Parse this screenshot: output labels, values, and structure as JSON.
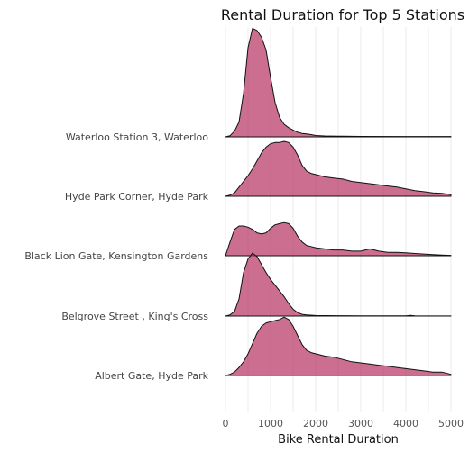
{
  "chart_data": {
    "type": "ridgeline",
    "title": "Rental Duration for Top 5 Stations",
    "xlabel": "Bike Rental Duration",
    "ylabel": "",
    "xlim": [
      -40,
      5100
    ],
    "xticks": [
      0,
      1000,
      2000,
      3000,
      4000,
      5000
    ],
    "grid": true,
    "fill_color": "#b5305f",
    "fill_opacity": 0.7,
    "series": [
      {
        "name": "Waterloo Station 3, Waterloo",
        "points": [
          [
            0,
            0
          ],
          [
            100,
            0.01
          ],
          [
            200,
            0.05
          ],
          [
            300,
            0.13
          ],
          [
            400,
            0.38
          ],
          [
            500,
            0.78
          ],
          [
            600,
            0.95
          ],
          [
            700,
            0.93
          ],
          [
            800,
            0.87
          ],
          [
            900,
            0.76
          ],
          [
            1000,
            0.52
          ],
          [
            1100,
            0.3
          ],
          [
            1200,
            0.17
          ],
          [
            1300,
            0.11
          ],
          [
            1400,
            0.08
          ],
          [
            1500,
            0.06
          ],
          [
            1600,
            0.04
          ],
          [
            1700,
            0.03
          ],
          [
            1800,
            0.025
          ],
          [
            1900,
            0.02
          ],
          [
            2000,
            0.012
          ],
          [
            2200,
            0.008
          ],
          [
            2500,
            0.006
          ],
          [
            3000,
            0.004
          ],
          [
            4000,
            0.003
          ],
          [
            5000,
            0.003
          ]
        ]
      },
      {
        "name": "Hyde Park Corner, Hyde Park",
        "points": [
          [
            0,
            0
          ],
          [
            100,
            0.01
          ],
          [
            200,
            0.03
          ],
          [
            300,
            0.08
          ],
          [
            400,
            0.13
          ],
          [
            500,
            0.18
          ],
          [
            600,
            0.24
          ],
          [
            700,
            0.31
          ],
          [
            800,
            0.38
          ],
          [
            900,
            0.43
          ],
          [
            1000,
            0.46
          ],
          [
            1100,
            0.47
          ],
          [
            1200,
            0.47
          ],
          [
            1300,
            0.48
          ],
          [
            1400,
            0.47
          ],
          [
            1500,
            0.43
          ],
          [
            1600,
            0.36
          ],
          [
            1700,
            0.27
          ],
          [
            1800,
            0.22
          ],
          [
            1900,
            0.2
          ],
          [
            2000,
            0.19
          ],
          [
            2200,
            0.17
          ],
          [
            2400,
            0.16
          ],
          [
            2600,
            0.15
          ],
          [
            2800,
            0.13
          ],
          [
            3000,
            0.12
          ],
          [
            3200,
            0.11
          ],
          [
            3400,
            0.1
          ],
          [
            3600,
            0.09
          ],
          [
            3800,
            0.08
          ],
          [
            4000,
            0.065
          ],
          [
            4200,
            0.05
          ],
          [
            4400,
            0.04
          ],
          [
            4600,
            0.03
          ],
          [
            4800,
            0.025
          ],
          [
            5000,
            0.015
          ]
        ]
      },
      {
        "name": "Black Lion Gate, Kensington Gardens",
        "points": [
          [
            0,
            0
          ],
          [
            100,
            0.12
          ],
          [
            200,
            0.23
          ],
          [
            300,
            0.26
          ],
          [
            400,
            0.26
          ],
          [
            500,
            0.25
          ],
          [
            600,
            0.23
          ],
          [
            700,
            0.2
          ],
          [
            800,
            0.19
          ],
          [
            900,
            0.2
          ],
          [
            1000,
            0.24
          ],
          [
            1100,
            0.27
          ],
          [
            1200,
            0.28
          ],
          [
            1300,
            0.29
          ],
          [
            1400,
            0.28
          ],
          [
            1500,
            0.24
          ],
          [
            1600,
            0.17
          ],
          [
            1700,
            0.12
          ],
          [
            1800,
            0.09
          ],
          [
            1900,
            0.08
          ],
          [
            2000,
            0.07
          ],
          [
            2200,
            0.06
          ],
          [
            2400,
            0.05
          ],
          [
            2600,
            0.05
          ],
          [
            2800,
            0.04
          ],
          [
            3000,
            0.04
          ],
          [
            3200,
            0.06
          ],
          [
            3400,
            0.04
          ],
          [
            3600,
            0.03
          ],
          [
            3800,
            0.03
          ],
          [
            4000,
            0.025
          ],
          [
            4200,
            0.02
          ],
          [
            4400,
            0.015
          ],
          [
            4600,
            0.01
          ],
          [
            4800,
            0.006
          ],
          [
            5000,
            0.003
          ]
        ]
      },
      {
        "name": "Belgrove Street , King's Cross",
        "points": [
          [
            0,
            0
          ],
          [
            100,
            0.01
          ],
          [
            200,
            0.04
          ],
          [
            300,
            0.15
          ],
          [
            400,
            0.38
          ],
          [
            500,
            0.5
          ],
          [
            600,
            0.55
          ],
          [
            700,
            0.52
          ],
          [
            800,
            0.45
          ],
          [
            900,
            0.38
          ],
          [
            1000,
            0.32
          ],
          [
            1100,
            0.27
          ],
          [
            1200,
            0.22
          ],
          [
            1300,
            0.17
          ],
          [
            1400,
            0.11
          ],
          [
            1500,
            0.06
          ],
          [
            1600,
            0.03
          ],
          [
            1700,
            0.015
          ],
          [
            1800,
            0.01
          ],
          [
            2000,
            0.005
          ],
          [
            2500,
            0.003
          ],
          [
            3000,
            0.002
          ],
          [
            4000,
            0.002
          ],
          [
            4100,
            0.006
          ],
          [
            4200,
            0.002
          ],
          [
            5000,
            0.001
          ]
        ]
      },
      {
        "name": "Albert Gate, Hyde Park",
        "points": [
          [
            0,
            0
          ],
          [
            100,
            0.01
          ],
          [
            200,
            0.03
          ],
          [
            300,
            0.07
          ],
          [
            400,
            0.12
          ],
          [
            500,
            0.19
          ],
          [
            600,
            0.28
          ],
          [
            700,
            0.37
          ],
          [
            800,
            0.43
          ],
          [
            900,
            0.46
          ],
          [
            1000,
            0.47
          ],
          [
            1100,
            0.48
          ],
          [
            1200,
            0.49
          ],
          [
            1300,
            0.51
          ],
          [
            1400,
            0.49
          ],
          [
            1500,
            0.43
          ],
          [
            1600,
            0.35
          ],
          [
            1700,
            0.27
          ],
          [
            1800,
            0.22
          ],
          [
            1900,
            0.2
          ],
          [
            2000,
            0.19
          ],
          [
            2200,
            0.17
          ],
          [
            2400,
            0.16
          ],
          [
            2600,
            0.14
          ],
          [
            2800,
            0.12
          ],
          [
            3000,
            0.11
          ],
          [
            3200,
            0.1
          ],
          [
            3400,
            0.09
          ],
          [
            3600,
            0.08
          ],
          [
            3800,
            0.07
          ],
          [
            4000,
            0.06
          ],
          [
            4200,
            0.05
          ],
          [
            4400,
            0.04
          ],
          [
            4600,
            0.03
          ],
          [
            4800,
            0.03
          ],
          [
            5000,
            0.01
          ]
        ]
      }
    ]
  }
}
